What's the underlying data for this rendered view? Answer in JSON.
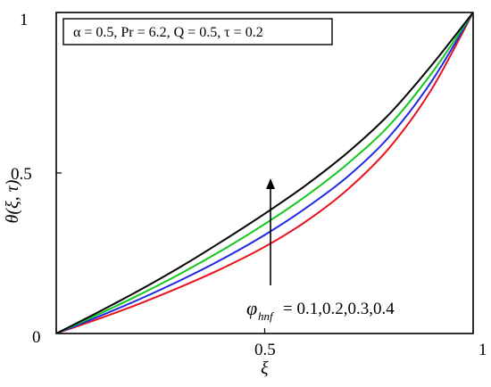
{
  "chart_data": {
    "type": "line",
    "xlabel": "ξ",
    "ylabel": "θ(ξ, τ)",
    "xlim": [
      0,
      1
    ],
    "ylim": [
      0,
      1
    ],
    "x_ticks": [
      "0",
      "0.5",
      "1"
    ],
    "y_ticks": [
      "0",
      "0.5",
      "1"
    ],
    "parameters_text": "α = 0.5, Pr = 6.2, Q = 0.5, τ = 0.2",
    "annotation": {
      "symbol": "φ",
      "subscript": "hnf",
      "text": "= 0.1,0.2,0.3,0.4"
    },
    "series": [
      {
        "color": "#e8141e",
        "x": [
          0,
          0.1,
          0.2,
          0.3,
          0.4,
          0.5,
          0.6,
          0.7,
          0.8,
          0.9,
          1.0
        ],
        "y": [
          0,
          0.045,
          0.093,
          0.146,
          0.204,
          0.27,
          0.35,
          0.45,
          0.58,
          0.76,
          1.0
        ]
      },
      {
        "color": "#1e28e6",
        "x": [
          0,
          0.1,
          0.2,
          0.3,
          0.4,
          0.5,
          0.6,
          0.7,
          0.8,
          0.9,
          1.0
        ],
        "y": [
          0,
          0.052,
          0.107,
          0.167,
          0.233,
          0.307,
          0.392,
          0.49,
          0.615,
          0.785,
          1.0
        ]
      },
      {
        "color": "#14c81e",
        "x": [
          0,
          0.1,
          0.2,
          0.3,
          0.4,
          0.5,
          0.6,
          0.7,
          0.8,
          0.9,
          1.0
        ],
        "y": [
          0,
          0.059,
          0.121,
          0.188,
          0.261,
          0.341,
          0.429,
          0.53,
          0.65,
          0.81,
          1.0
        ]
      },
      {
        "color": "#000000",
        "x": [
          0,
          0.1,
          0.2,
          0.3,
          0.4,
          0.5,
          0.6,
          0.7,
          0.8,
          0.9,
          1.0
        ],
        "y": [
          0,
          0.066,
          0.135,
          0.209,
          0.289,
          0.373,
          0.463,
          0.565,
          0.685,
          0.835,
          1.0
        ]
      }
    ]
  }
}
